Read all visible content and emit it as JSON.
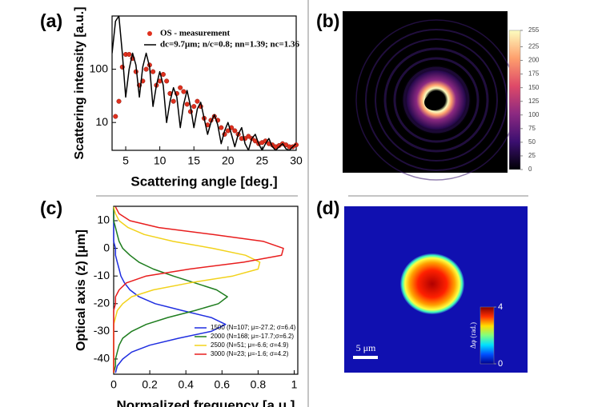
{
  "chart_data": [
    {
      "type": "line",
      "panel_label": "(a)",
      "xlabel": "Scattering angle [deg.]",
      "ylabel": "Scattering intensity [a.u.]",
      "yscale": "log",
      "xlim": [
        3,
        30
      ],
      "ylim": [
        3,
        1000
      ],
      "xticks": [
        5,
        10,
        15,
        20,
        25,
        30
      ],
      "yticks": [
        10,
        100
      ],
      "x": [
        3,
        3.5,
        4,
        4.5,
        5,
        5.5,
        6,
        6.5,
        7,
        7.5,
        8,
        8.5,
        9,
        9.5,
        10,
        10.5,
        11,
        11.5,
        12,
        12.5,
        13,
        13.5,
        14,
        14.5,
        15,
        15.5,
        16,
        16.5,
        17,
        17.5,
        18,
        18.5,
        19,
        19.5,
        20,
        20.5,
        21,
        21.5,
        22,
        22.5,
        23,
        23.5,
        24,
        24.5,
        25,
        25.5,
        26,
        26.5,
        27,
        27.5,
        28,
        28.5,
        29,
        29.5,
        30
      ],
      "series": [
        {
          "name": "OS - measurement",
          "color": "#e0301e",
          "mode": "markers",
          "values": [
            null,
            13,
            25,
            110,
            190,
            190,
            160,
            90,
            50,
            60,
            100,
            120,
            90,
            50,
            60,
            80,
            60,
            35,
            25,
            35,
            45,
            38,
            22,
            16,
            20,
            25,
            20,
            12,
            9,
            11,
            13,
            11,
            8,
            6,
            7,
            8,
            7,
            6,
            5,
            5,
            5.5,
            5,
            4.5,
            4,
            4.2,
            4.5,
            4,
            3.8,
            3.5,
            3.7,
            4,
            3.8,
            3.5,
            3.5,
            3.8
          ]
        },
        {
          "name": "dc=9.7μm; n/c=0.8; nn=1.39; nc=1.36",
          "color": "#000000",
          "mode": "line",
          "values": [
            200,
            800,
            1000,
            200,
            30,
            100,
            200,
            120,
            30,
            110,
            200,
            110,
            20,
            50,
            90,
            50,
            10,
            25,
            45,
            30,
            8,
            22,
            40,
            20,
            8,
            18,
            24,
            12,
            6,
            10,
            14,
            9,
            4,
            7,
            10,
            6,
            3.5,
            6,
            8,
            4,
            3,
            5,
            6,
            4,
            3,
            4,
            5,
            3.5,
            3,
            3.5,
            4,
            3.2,
            3,
            3.5,
            4
          ]
        }
      ]
    },
    {
      "type": "image",
      "panel_label": "(b)",
      "colormap": [
        "#000004",
        "#3b0f70",
        "#8c2981",
        "#de4968",
        "#fe9f6d",
        "#fcfdbf"
      ],
      "ylim": [
        0,
        255
      ],
      "yticks": [
        0,
        25,
        50,
        75,
        100,
        125,
        150,
        175,
        200,
        225,
        255
      ]
    },
    {
      "type": "line",
      "orientation": "horizontal",
      "panel_label": "(c)",
      "xlabel": "Normalized frequency [a.u.]",
      "ylabel": "Optical axis (z) [μm]",
      "xlim": [
        0,
        1.02
      ],
      "ylim": [
        -45.5,
        15.2
      ],
      "xticks": [
        0,
        0.2,
        0.4,
        0.6,
        0.8,
        1
      ],
      "yticks": [
        10,
        0,
        -10,
        -20,
        -30,
        -40
      ],
      "y": [
        15,
        12.5,
        10,
        7.5,
        5,
        2.5,
        0,
        -2.5,
        -5,
        -7.5,
        -10,
        -12.5,
        -15,
        -17.5,
        -20,
        -22.5,
        -25,
        -27.5,
        -30,
        -32.5,
        -35,
        -37.5,
        -40,
        -42.5,
        -45
      ],
      "series": [
        {
          "name": "1500 (N=107; μ=-27.2; σ=6.4)",
          "color": "#1f2ee0",
          "values": [
            0,
            0,
            0,
            0,
            0,
            0,
            0.01,
            0.01,
            0.02,
            0.03,
            0.04,
            0.06,
            0.09,
            0.14,
            0.23,
            0.38,
            0.54,
            0.62,
            0.54,
            0.36,
            0.2,
            0.1,
            0.05,
            0.02,
            0.01
          ]
        },
        {
          "name": "2000 (N=168; μ=-17.7;σ=6.2)",
          "color": "#1e7d1e",
          "values": [
            0,
            0,
            0,
            0.01,
            0.02,
            0.03,
            0.05,
            0.09,
            0.14,
            0.22,
            0.33,
            0.45,
            0.57,
            0.63,
            0.58,
            0.45,
            0.3,
            0.18,
            0.1,
            0.05,
            0.03,
            0.02,
            0.01,
            0.01,
            0
          ]
        },
        {
          "name": "2500 (N=51; μ=-6.6; σ=4.9)",
          "color": "#f2d21b",
          "values": [
            0,
            0.01,
            0.03,
            0.08,
            0.17,
            0.33,
            0.55,
            0.73,
            0.81,
            0.8,
            0.66,
            0.42,
            0.22,
            0.1,
            0.05,
            0.02,
            0.01,
            0,
            0,
            0,
            0,
            0,
            0,
            0,
            0
          ]
        },
        {
          "name": "3000 (N=23; μ=-1.6; σ=4.2)",
          "color": "#e81d1d",
          "values": [
            0.01,
            0.03,
            0.09,
            0.25,
            0.55,
            0.83,
            0.94,
            0.93,
            0.72,
            0.42,
            0.18,
            0.07,
            0.03,
            0.01,
            0.01,
            0,
            0,
            0,
            0,
            0,
            0,
            0,
            0,
            0,
            0
          ]
        }
      ]
    },
    {
      "type": "image",
      "panel_label": "(d)",
      "colormap": [
        "#00008f",
        "#0050ff",
        "#00e0ff",
        "#80ff80",
        "#ffe000",
        "#ff3000",
        "#800000"
      ],
      "ylim": [
        0,
        4
      ],
      "yticks": [
        0,
        4
      ],
      "colorbar_label": "Δφ (rad.)",
      "scale_bar": "5 μm"
    }
  ]
}
